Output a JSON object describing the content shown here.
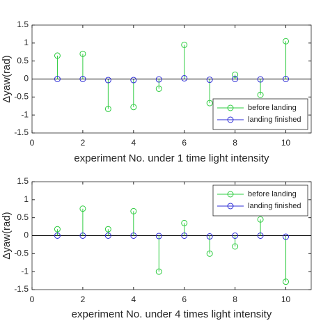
{
  "chart_data": [
    {
      "type": "stem",
      "y_label": "Δyaw(rad)",
      "x_label": "experiment No. under 1 time light intensity",
      "x": [
        1,
        2,
        3,
        4,
        5,
        6,
        7,
        8,
        9,
        10
      ],
      "series": [
        {
          "name": "before landing",
          "color": "#2ecc40",
          "values": [
            0.65,
            0.7,
            -0.83,
            -0.78,
            -0.27,
            0.95,
            -0.67,
            0.12,
            -0.44,
            1.05
          ]
        },
        {
          "name": "landing finished",
          "color": "#2b2bd6",
          "values": [
            0,
            0,
            -0.03,
            -0.03,
            -0.01,
            0.02,
            -0.02,
            0,
            -0.01,
            0
          ]
        }
      ],
      "xlim": [
        0,
        11
      ],
      "xticks": [
        0,
        2,
        4,
        6,
        8,
        10
      ],
      "ylim": [
        -1.5,
        1.5
      ],
      "yticks": [
        -1.5,
        -1,
        -0.5,
        0,
        0.5,
        1,
        1.5
      ],
      "legend": "lower right"
    },
    {
      "type": "stem",
      "y_label": "Δyaw(rad)",
      "x_label": "experiment No. under 4 times light intensity",
      "x": [
        1,
        2,
        3,
        4,
        5,
        6,
        7,
        8,
        9,
        10
      ],
      "series": [
        {
          "name": "before landing",
          "color": "#2ecc40",
          "values": [
            0.18,
            0.75,
            0.18,
            0.68,
            -1.0,
            0.35,
            -0.5,
            -0.3,
            0.45,
            -1.28
          ]
        },
        {
          "name": "landing finished",
          "color": "#2b2bd6",
          "values": [
            0,
            0,
            0,
            0,
            -0.01,
            0,
            -0.02,
            0,
            0,
            -0.03
          ]
        }
      ],
      "xlim": [
        0,
        11
      ],
      "xticks": [
        0,
        2,
        4,
        6,
        8,
        10
      ],
      "ylim": [
        -1.5,
        1.5
      ],
      "yticks": [
        -1.5,
        -1,
        -0.5,
        0,
        0.5,
        1,
        1.5
      ],
      "legend": "upper right"
    }
  ]
}
